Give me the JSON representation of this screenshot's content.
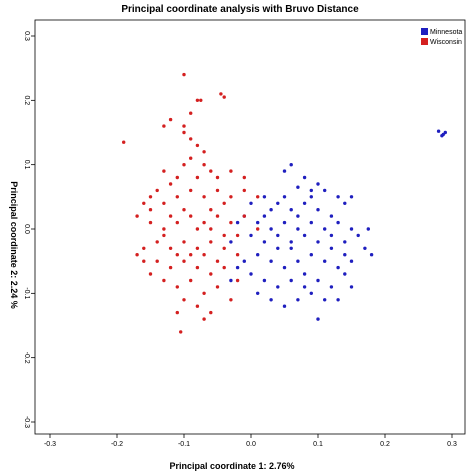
{
  "chart_data": {
    "type": "scatter",
    "title": "Principal coordinate analysis with Bruvo Distance",
    "xlabel": "Principal coordinate 1: 2.76%",
    "ylabel": "Principal coordinate 2: 2.24 %",
    "xlim": [
      -0.3,
      0.3
    ],
    "ylim": [
      -0.3,
      0.3
    ],
    "x_ticks": [
      "-0.3",
      "-0.2",
      "-0.1",
      "0.0",
      "0.1",
      "0.2",
      "0.3"
    ],
    "y_ticks": [
      "-0.3",
      "-0.2",
      "-0.1",
      "0.0",
      "0.1",
      "0.2",
      "0.3"
    ],
    "grid": false,
    "legend_position": "top-right",
    "series": [
      {
        "name": "Minnesota",
        "color": "#1f1fbf",
        "points": [
          [
            0.29,
            0.15
          ],
          [
            0.285,
            0.145
          ],
          [
            0.28,
            0.152
          ],
          [
            0.287,
            0.147
          ],
          [
            0.06,
            0.1
          ],
          [
            0.08,
            0.08
          ],
          [
            0.05,
            0.09
          ],
          [
            0.1,
            0.07
          ],
          [
            0.07,
            0.065
          ],
          [
            0.09,
            0.06
          ],
          [
            0.02,
            0.05
          ],
          [
            0.04,
            0.04
          ],
          [
            0.06,
            0.03
          ],
          [
            0.08,
            0.04
          ],
          [
            0.1,
            0.03
          ],
          [
            0.12,
            0.02
          ],
          [
            0.14,
            0.04
          ],
          [
            0.13,
            0.01
          ],
          [
            0.15,
            0.0
          ],
          [
            0.11,
            0.0
          ],
          [
            0.09,
            0.01
          ],
          [
            0.07,
            0.0
          ],
          [
            0.05,
            0.01
          ],
          [
            0.03,
            0.0
          ],
          [
            0.01,
            0.01
          ],
          [
            0.0,
            -0.01
          ],
          [
            0.02,
            -0.02
          ],
          [
            0.04,
            -0.03
          ],
          [
            0.06,
            -0.02
          ],
          [
            0.08,
            -0.01
          ],
          [
            0.1,
            -0.02
          ],
          [
            0.12,
            -0.03
          ],
          [
            0.14,
            -0.02
          ],
          [
            0.16,
            -0.01
          ],
          [
            0.17,
            -0.03
          ],
          [
            0.18,
            -0.04
          ],
          [
            0.175,
            0.0
          ],
          [
            0.15,
            -0.05
          ],
          [
            0.13,
            -0.06
          ],
          [
            0.11,
            -0.05
          ],
          [
            0.09,
            -0.04
          ],
          [
            0.07,
            -0.05
          ],
          [
            0.05,
            -0.06
          ],
          [
            0.03,
            -0.05
          ],
          [
            0.01,
            -0.04
          ],
          [
            -0.01,
            -0.05
          ],
          [
            0.0,
            -0.07
          ],
          [
            0.02,
            -0.08
          ],
          [
            0.04,
            -0.09
          ],
          [
            0.06,
            -0.08
          ],
          [
            0.08,
            -0.07
          ],
          [
            0.1,
            -0.08
          ],
          [
            0.12,
            -0.09
          ],
          [
            0.14,
            -0.07
          ],
          [
            0.15,
            -0.09
          ],
          [
            0.11,
            -0.11
          ],
          [
            0.09,
            -0.1
          ],
          [
            0.07,
            -0.11
          ],
          [
            0.05,
            -0.12
          ],
          [
            0.03,
            -0.11
          ],
          [
            0.01,
            -0.1
          ],
          [
            0.1,
            -0.14
          ],
          [
            0.13,
            -0.11
          ],
          [
            -0.02,
            -0.06
          ],
          [
            -0.03,
            -0.02
          ],
          [
            -0.01,
            0.02
          ],
          [
            0.03,
            0.03
          ],
          [
            0.05,
            0.05
          ],
          [
            0.07,
            0.02
          ],
          [
            0.09,
            0.05
          ],
          [
            0.11,
            0.06
          ],
          [
            0.13,
            0.05
          ],
          [
            0.15,
            0.05
          ],
          [
            0.0,
            0.04
          ],
          [
            -0.02,
            0.01
          ],
          [
            -0.03,
            -0.08
          ],
          [
            0.06,
            -0.03
          ],
          [
            0.04,
            -0.01
          ],
          [
            0.02,
            0.02
          ],
          [
            0.08,
            -0.09
          ],
          [
            0.12,
            -0.01
          ],
          [
            0.14,
            -0.04
          ]
        ]
      },
      {
        "name": "Wisconsin",
        "color": "#d42020",
        "points": [
          [
            -0.1,
            0.24
          ],
          [
            -0.08,
            0.2
          ],
          [
            -0.075,
            0.2
          ],
          [
            -0.045,
            0.21
          ],
          [
            -0.04,
            0.205
          ],
          [
            -0.19,
            0.135
          ],
          [
            -0.1,
            0.15
          ],
          [
            -0.12,
            0.17
          ],
          [
            -0.1,
            0.16
          ],
          [
            -0.09,
            0.18
          ],
          [
            -0.13,
            0.16
          ],
          [
            -0.08,
            0.13
          ],
          [
            -0.07,
            0.12
          ],
          [
            -0.09,
            0.11
          ],
          [
            -0.07,
            0.1
          ],
          [
            -0.05,
            0.08
          ],
          [
            -0.03,
            0.09
          ],
          [
            -0.01,
            0.08
          ],
          [
            -0.13,
            0.09
          ],
          [
            -0.11,
            0.08
          ],
          [
            -0.14,
            0.06
          ],
          [
            -0.15,
            0.05
          ],
          [
            -0.16,
            0.04
          ],
          [
            -0.15,
            0.03
          ],
          [
            -0.13,
            0.04
          ],
          [
            -0.11,
            0.05
          ],
          [
            -0.09,
            0.06
          ],
          [
            -0.07,
            0.05
          ],
          [
            -0.05,
            0.06
          ],
          [
            -0.03,
            0.05
          ],
          [
            -0.01,
            0.06
          ],
          [
            0.01,
            0.05
          ],
          [
            -0.17,
            0.02
          ],
          [
            -0.15,
            0.01
          ],
          [
            -0.13,
            0.0
          ],
          [
            -0.11,
            0.01
          ],
          [
            -0.09,
            0.02
          ],
          [
            -0.07,
            0.01
          ],
          [
            -0.05,
            0.02
          ],
          [
            -0.03,
            0.01
          ],
          [
            -0.01,
            0.02
          ],
          [
            0.01,
            0.0
          ],
          [
            -0.16,
            -0.03
          ],
          [
            -0.14,
            -0.02
          ],
          [
            -0.12,
            -0.03
          ],
          [
            -0.1,
            -0.02
          ],
          [
            -0.08,
            -0.03
          ],
          [
            -0.06,
            -0.02
          ],
          [
            -0.04,
            -0.03
          ],
          [
            -0.02,
            -0.04
          ],
          [
            -0.14,
            -0.05
          ],
          [
            -0.12,
            -0.06
          ],
          [
            -0.1,
            -0.05
          ],
          [
            -0.08,
            -0.06
          ],
          [
            -0.06,
            -0.07
          ],
          [
            -0.04,
            -0.06
          ],
          [
            -0.02,
            -0.08
          ],
          [
            -0.13,
            -0.08
          ],
          [
            -0.11,
            -0.09
          ],
          [
            -0.09,
            -0.08
          ],
          [
            -0.07,
            -0.1
          ],
          [
            -0.05,
            -0.09
          ],
          [
            -0.03,
            -0.11
          ],
          [
            -0.1,
            -0.11
          ],
          [
            -0.08,
            -0.12
          ],
          [
            -0.06,
            -0.13
          ],
          [
            -0.11,
            -0.13
          ],
          [
            -0.105,
            -0.16
          ],
          [
            -0.07,
            -0.14
          ],
          [
            -0.15,
            -0.07
          ],
          [
            -0.16,
            -0.05
          ],
          [
            -0.17,
            -0.04
          ],
          [
            -0.12,
            0.07
          ],
          [
            -0.1,
            0.03
          ],
          [
            -0.08,
            0.08
          ],
          [
            -0.06,
            0.03
          ],
          [
            -0.04,
            0.04
          ],
          [
            -0.02,
            -0.01
          ],
          [
            -0.09,
            -0.04
          ],
          [
            -0.07,
            -0.04
          ],
          [
            -0.05,
            -0.05
          ],
          [
            -0.11,
            -0.04
          ],
          [
            -0.13,
            -0.01
          ],
          [
            -0.08,
            0.0
          ],
          [
            -0.06,
            0.0
          ],
          [
            -0.04,
            -0.01
          ],
          [
            -0.12,
            0.02
          ],
          [
            -0.1,
            0.1
          ],
          [
            -0.09,
            0.14
          ],
          [
            -0.06,
            0.09
          ]
        ]
      }
    ]
  }
}
